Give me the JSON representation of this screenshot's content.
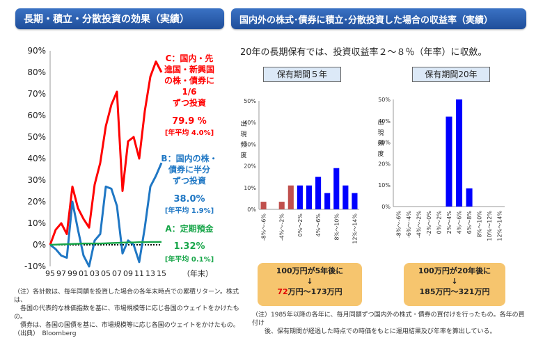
{
  "header_left": "長期・積立・分散投資の効果（実績）",
  "header_right": "国内外の株式･債券に積立･分散投資した場合の収益率（実績）",
  "lead": "20年の長期保有では、投資収益率２～８％（年率）に収斂。",
  "chart_data": [
    {
      "type": "line",
      "x": [
        "95",
        "96",
        "97",
        "98",
        "99",
        "00",
        "01",
        "02",
        "03",
        "04",
        "05",
        "06",
        "07",
        "08",
        "09",
        "10",
        "11",
        "12",
        "13",
        "14",
        "15"
      ],
      "xtick_labels": [
        "95",
        "97",
        "99",
        "01",
        "03",
        "05",
        "07",
        "09",
        "11",
        "13",
        "15"
      ],
      "xlabel": "（年末）",
      "ylim": [
        -10,
        90
      ],
      "yticks": [
        "90%",
        "80%",
        "70%",
        "60%",
        "50%",
        "40%",
        "30%",
        "20%",
        "10%",
        "0%",
        "-10%"
      ],
      "series": [
        {
          "name": "C：国内・先進国・新興国の株・債券に1/6ずつ投資",
          "name_lines": [
            "C：国内・先",
            "進国・新興国",
            "の株・債券に",
            "1/6",
            "ずつ投資"
          ],
          "color": "#ff0000",
          "result": "79.9 %",
          "annual": "[年平均 4.0%]",
          "values": [
            0,
            7,
            10,
            5,
            27,
            17,
            12,
            8,
            28,
            38,
            55,
            65,
            71,
            25,
            48,
            50,
            40,
            62,
            78,
            85,
            80
          ]
        },
        {
          "name": "B：国内の株・債券に半分ずつ投資",
          "name_lines": [
            "B：国内の株・",
            "債券に半分",
            "ずつ投資"
          ],
          "color": "#1f77c4",
          "result": "38.0%",
          "annual": "[年平均 1.9%]",
          "values": [
            0,
            -2,
            -5,
            -6,
            20,
            7,
            -5,
            -10,
            2,
            5,
            27,
            26,
            18,
            -4,
            2,
            0,
            -8,
            8,
            27,
            32,
            38
          ]
        },
        {
          "name": "A：定期預金",
          "name_lines": [
            "A：定期預金"
          ],
          "color": "#19a64a",
          "result": "1.32%",
          "annual": "[年平均 0.1%]",
          "values": [
            0,
            0.1,
            0.2,
            0.3,
            0.4,
            0.5,
            0.6,
            0.6,
            0.6,
            0.6,
            0.7,
            0.8,
            0.9,
            1.0,
            1.1,
            1.1,
            1.2,
            1.2,
            1.3,
            1.3,
            1.32
          ]
        }
      ]
    },
    {
      "type": "bar",
      "title": "保有期間５年",
      "ylabel": "出現頻度",
      "categories": [
        "-8%～-6%",
        "-6%～-4%",
        "-4%～-2%",
        "-2%～0%",
        "0%～2%",
        "2%～4%",
        "4%～6%",
        "6%～8%",
        "8%～10%",
        "10%～12%",
        "12%～14%"
      ],
      "xtick_labels": [
        "-8%～-6%",
        "",
        "-4%～-2%",
        "",
        "0%～2%",
        "",
        "4%～6%",
        "",
        "8%～10%",
        "",
        "12%～14%"
      ],
      "ylim": [
        0,
        50
      ],
      "yticks": [
        "50%",
        "40%",
        "30%",
        "20%",
        "10%",
        "0%"
      ],
      "values": [
        3.5,
        0,
        3.5,
        11,
        11,
        11,
        15,
        7.5,
        19,
        11,
        7.5
      ],
      "negative_color": "#c0504d",
      "positive_color": "#0000ff"
    },
    {
      "type": "bar",
      "title": "保有期間20年",
      "ylabel": "出現頻度",
      "categories": [
        "-8%～-6%",
        "-6%～-4%",
        "-4%～-2%",
        "-2%～0%",
        "0%～2%",
        "2%～4%",
        "4%～6%",
        "6%～8%",
        "8%～10%",
        "10%～12%",
        "12%～14%"
      ],
      "xtick_labels": [
        "-8%～-6%",
        "-6%～-4%",
        "-4%～-2%",
        "-2%～0%",
        "0%～2%",
        "2%～4%",
        "4%～6%",
        "6%～8%",
        "8%～10%",
        "10%～12%",
        "12%～14%"
      ],
      "ylim": [
        0,
        50
      ],
      "yticks": [
        "50%",
        "40%",
        "30%",
        "20%",
        "10%",
        "0%"
      ],
      "values": [
        0,
        0,
        0,
        0,
        0,
        42,
        50,
        8.5,
        0,
        0,
        0
      ],
      "negative_color": "#c0504d",
      "positive_color": "#0000ff"
    }
  ],
  "callout_5y": {
    "line1": "100万円が5年後に",
    "arrow": "↓",
    "low": "72",
    "rest": "万円～173万円"
  },
  "callout_20y": {
    "line1": "100万円が20年後に",
    "arrow": "↓",
    "line3": "185万円～321万円"
  },
  "note_left": [
    "（注）各計数は、毎年同額を投資した場合の各年末時点での累積リターン。株式は、",
    "　各国の代表的な株価指数を基に、市場規模等に応じ各国のウェイトをかけたもの。",
    "　債券は、各国の国債を基に、市場規模等に応じ各国のウェイトをかけたもの。",
    "（出典）　Bloomberg"
  ],
  "note_right": [
    "（注）1985年以降の各年に、毎月同額ずつ国内外の株式・債券の買付けを行ったもの。各年の買付け",
    "　　後、保有期間が経過した時点での時価をもとに運用結果及び年率を算出している。"
  ]
}
